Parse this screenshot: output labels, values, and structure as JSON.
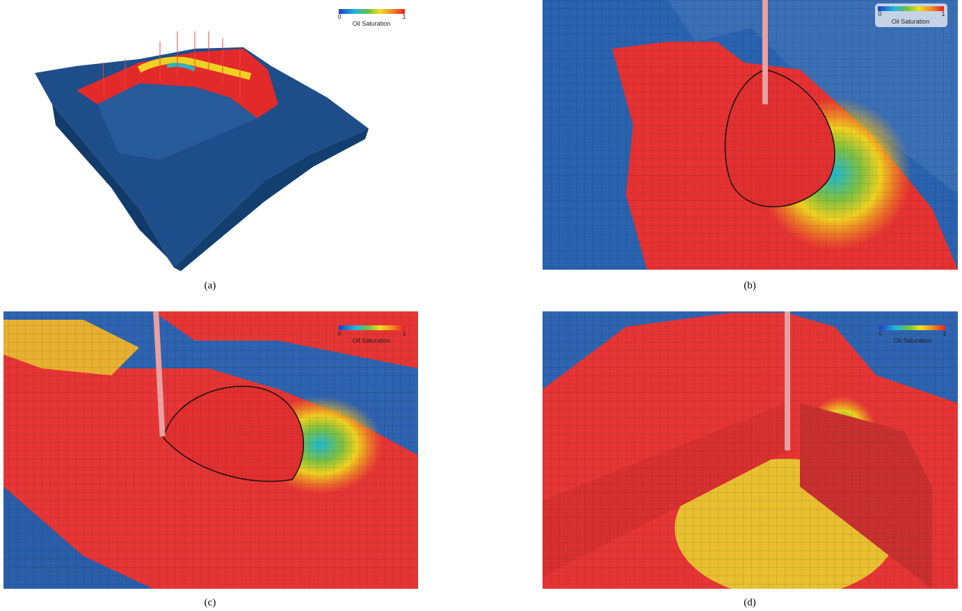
{
  "panels": [
    {
      "caption": "(a)",
      "colorbar": {
        "min": "0",
        "max": "1",
        "title": "Oil Saturation"
      }
    },
    {
      "caption": "(b)",
      "colorbar": {
        "min": "0",
        "max": "1",
        "title": "Oil Saturation"
      }
    },
    {
      "caption": "(c)",
      "colorbar": {
        "min": "0",
        "max": "1",
        "title": "Oil Saturation"
      }
    },
    {
      "caption": "(d)",
      "colorbar": {
        "min": "0",
        "max": "1",
        "title": "Oil Saturation"
      }
    }
  ]
}
